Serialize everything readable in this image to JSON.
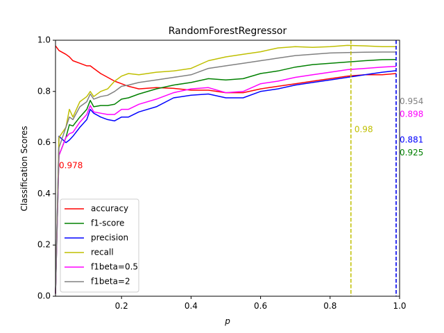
{
  "chart_data": {
    "type": "line",
    "title": "RandomForestRegressor",
    "xlabel": "p",
    "ylabel": "Classification Scores",
    "xlim": [
      0.01,
      1.0
    ],
    "ylim": [
      0.0,
      1.0
    ],
    "xticks": [
      0.2,
      0.4,
      0.6,
      0.8,
      1.0
    ],
    "xtick_labels": [
      "0.2",
      "0.4",
      "0.6",
      "0.8",
      "1.0"
    ],
    "yticks": [
      0.0,
      0.2,
      0.4,
      0.6,
      0.8,
      1.0
    ],
    "ytick_labels": [
      "0.0",
      "0.2",
      "0.4",
      "0.6",
      "0.8",
      "1.0"
    ],
    "grid": false,
    "legend_position": "lower-left",
    "x": [
      0.01,
      0.02,
      0.04,
      0.05,
      0.06,
      0.08,
      0.1,
      0.11,
      0.12,
      0.14,
      0.16,
      0.18,
      0.2,
      0.22,
      0.25,
      0.3,
      0.35,
      0.4,
      0.45,
      0.5,
      0.55,
      0.6,
      0.65,
      0.7,
      0.75,
      0.8,
      0.85,
      0.9,
      0.95,
      0.99
    ],
    "series": [
      {
        "name": "accuracy",
        "color": "#ff0000",
        "values": [
          0.978,
          0.96,
          0.945,
          0.935,
          0.92,
          0.91,
          0.9,
          0.9,
          0.89,
          0.87,
          0.855,
          0.84,
          0.83,
          0.82,
          0.81,
          0.815,
          0.812,
          0.805,
          0.805,
          0.795,
          0.795,
          0.81,
          0.82,
          0.83,
          0.84,
          0.85,
          0.86,
          0.865,
          0.865,
          0.87
        ]
      },
      {
        "name": "f1-score",
        "color": "#008000",
        "values": [
          0.01,
          0.55,
          0.62,
          0.67,
          0.665,
          0.7,
          0.73,
          0.765,
          0.74,
          0.745,
          0.745,
          0.75,
          0.77,
          0.775,
          0.79,
          0.81,
          0.825,
          0.835,
          0.85,
          0.845,
          0.85,
          0.87,
          0.88,
          0.895,
          0.905,
          0.91,
          0.915,
          0.92,
          0.924,
          0.925
        ]
      },
      {
        "name": "precision",
        "color": "#0000ff",
        "values": [
          0.01,
          0.625,
          0.6,
          0.61,
          0.625,
          0.66,
          0.69,
          0.73,
          0.715,
          0.7,
          0.69,
          0.685,
          0.7,
          0.7,
          0.72,
          0.74,
          0.775,
          0.785,
          0.79,
          0.775,
          0.775,
          0.8,
          0.81,
          0.825,
          0.835,
          0.845,
          0.855,
          0.865,
          0.875,
          0.881
        ]
      },
      {
        "name": "recall",
        "color": "#bfbf00",
        "values": [
          0.01,
          0.62,
          0.66,
          0.73,
          0.7,
          0.76,
          0.78,
          0.8,
          0.78,
          0.8,
          0.81,
          0.84,
          0.86,
          0.87,
          0.865,
          0.875,
          0.88,
          0.89,
          0.92,
          0.935,
          0.945,
          0.955,
          0.97,
          0.975,
          0.972,
          0.975,
          0.98,
          0.978,
          0.975,
          0.975
        ]
      },
      {
        "name": "f1beta=0.5",
        "color": "#ff00ff",
        "values": [
          0.01,
          0.55,
          0.62,
          0.635,
          0.64,
          0.68,
          0.71,
          0.745,
          0.72,
          0.715,
          0.71,
          0.71,
          0.73,
          0.73,
          0.75,
          0.77,
          0.795,
          0.81,
          0.815,
          0.795,
          0.8,
          0.83,
          0.84,
          0.855,
          0.865,
          0.875,
          0.885,
          0.89,
          0.895,
          0.898
        ]
      },
      {
        "name": "f1beta=2",
        "color": "#808080",
        "values": [
          0.01,
          0.58,
          0.66,
          0.7,
          0.69,
          0.74,
          0.76,
          0.79,
          0.77,
          0.78,
          0.785,
          0.8,
          0.82,
          0.825,
          0.835,
          0.845,
          0.855,
          0.865,
          0.89,
          0.9,
          0.91,
          0.92,
          0.93,
          0.94,
          0.945,
          0.95,
          0.952,
          0.953,
          0.954,
          0.954
        ]
      }
    ],
    "vlines": [
      {
        "x": 0.86,
        "color": "#bfbf00"
      },
      {
        "x": 0.99,
        "color": "#808080"
      },
      {
        "x": 0.99,
        "color": "#0000ff"
      }
    ],
    "annotations": [
      {
        "text": "0.978",
        "x": 0.02,
        "y": 0.51,
        "color": "#ff0000"
      },
      {
        "text": "0.98",
        "x": 0.87,
        "y": 0.65,
        "color": "#bfbf00"
      },
      {
        "text": "0.954",
        "x": 1.0,
        "y": 0.76,
        "color": "#808080"
      },
      {
        "text": "0.898",
        "x": 1.0,
        "y": 0.71,
        "color": "#ff00ff"
      },
      {
        "text": "0.881",
        "x": 1.0,
        "y": 0.61,
        "color": "#0000ff"
      },
      {
        "text": "0.925",
        "x": 1.0,
        "y": 0.56,
        "color": "#008000"
      }
    ]
  }
}
